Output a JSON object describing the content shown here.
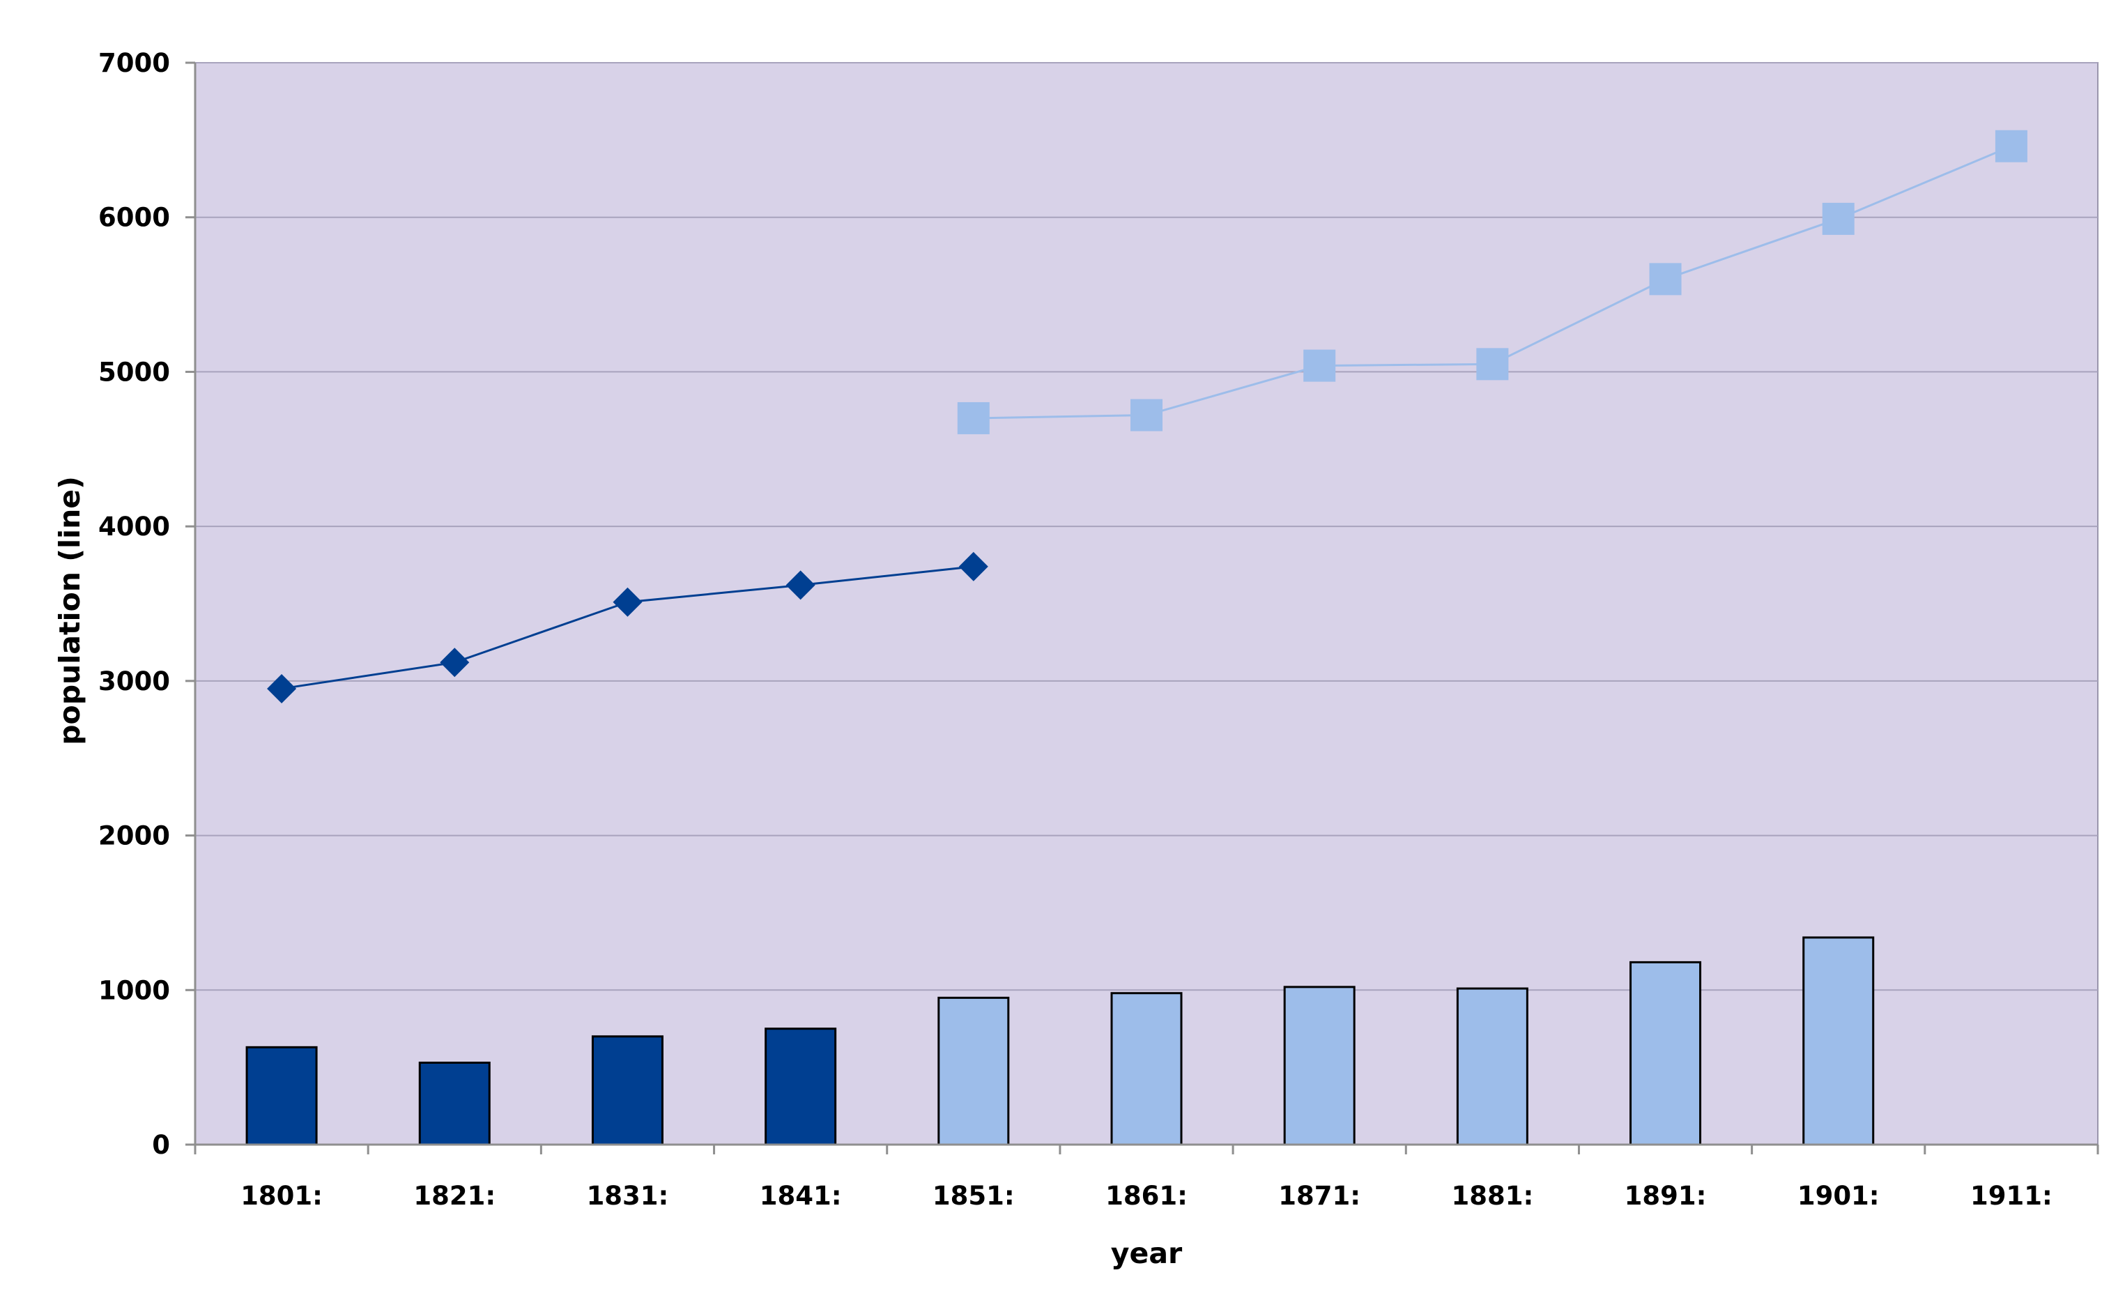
{
  "chart_data": {
    "type": "bar",
    "title": "",
    "xlabel": "year",
    "ylabel": "population (line)",
    "ylim": [
      0,
      7000
    ],
    "yticks": [
      0,
      1000,
      2000,
      3000,
      4000,
      5000,
      6000,
      7000
    ],
    "grid": true,
    "legend": "none",
    "categories": [
      "1801:",
      "1821:",
      "1831:",
      "1841:",
      "1851:",
      "1861:",
      "1871:",
      "1881:",
      "1891:",
      "1901:",
      "1911:"
    ],
    "series": [
      {
        "kind": "bar",
        "color": "#003f91",
        "values": [
          630,
          530,
          700,
          750,
          null,
          null,
          null,
          null,
          null,
          null,
          null
        ]
      },
      {
        "kind": "bar",
        "color": "#9dbdea",
        "values": [
          null,
          null,
          null,
          null,
          950,
          980,
          1020,
          1010,
          1180,
          1340,
          null
        ]
      },
      {
        "kind": "line",
        "marker": "diamond",
        "color": "#003f91",
        "values": [
          2950,
          3120,
          3510,
          3620,
          3740,
          null,
          null,
          null,
          null,
          null,
          null
        ]
      },
      {
        "kind": "line",
        "marker": "square",
        "color": "#9dbdea",
        "values": [
          null,
          null,
          null,
          null,
          4700,
          4720,
          5040,
          5050,
          5600,
          5990,
          6460
        ]
      }
    ],
    "plot_background": "#d8d2e8",
    "grid_color": "#a8a3bd"
  }
}
